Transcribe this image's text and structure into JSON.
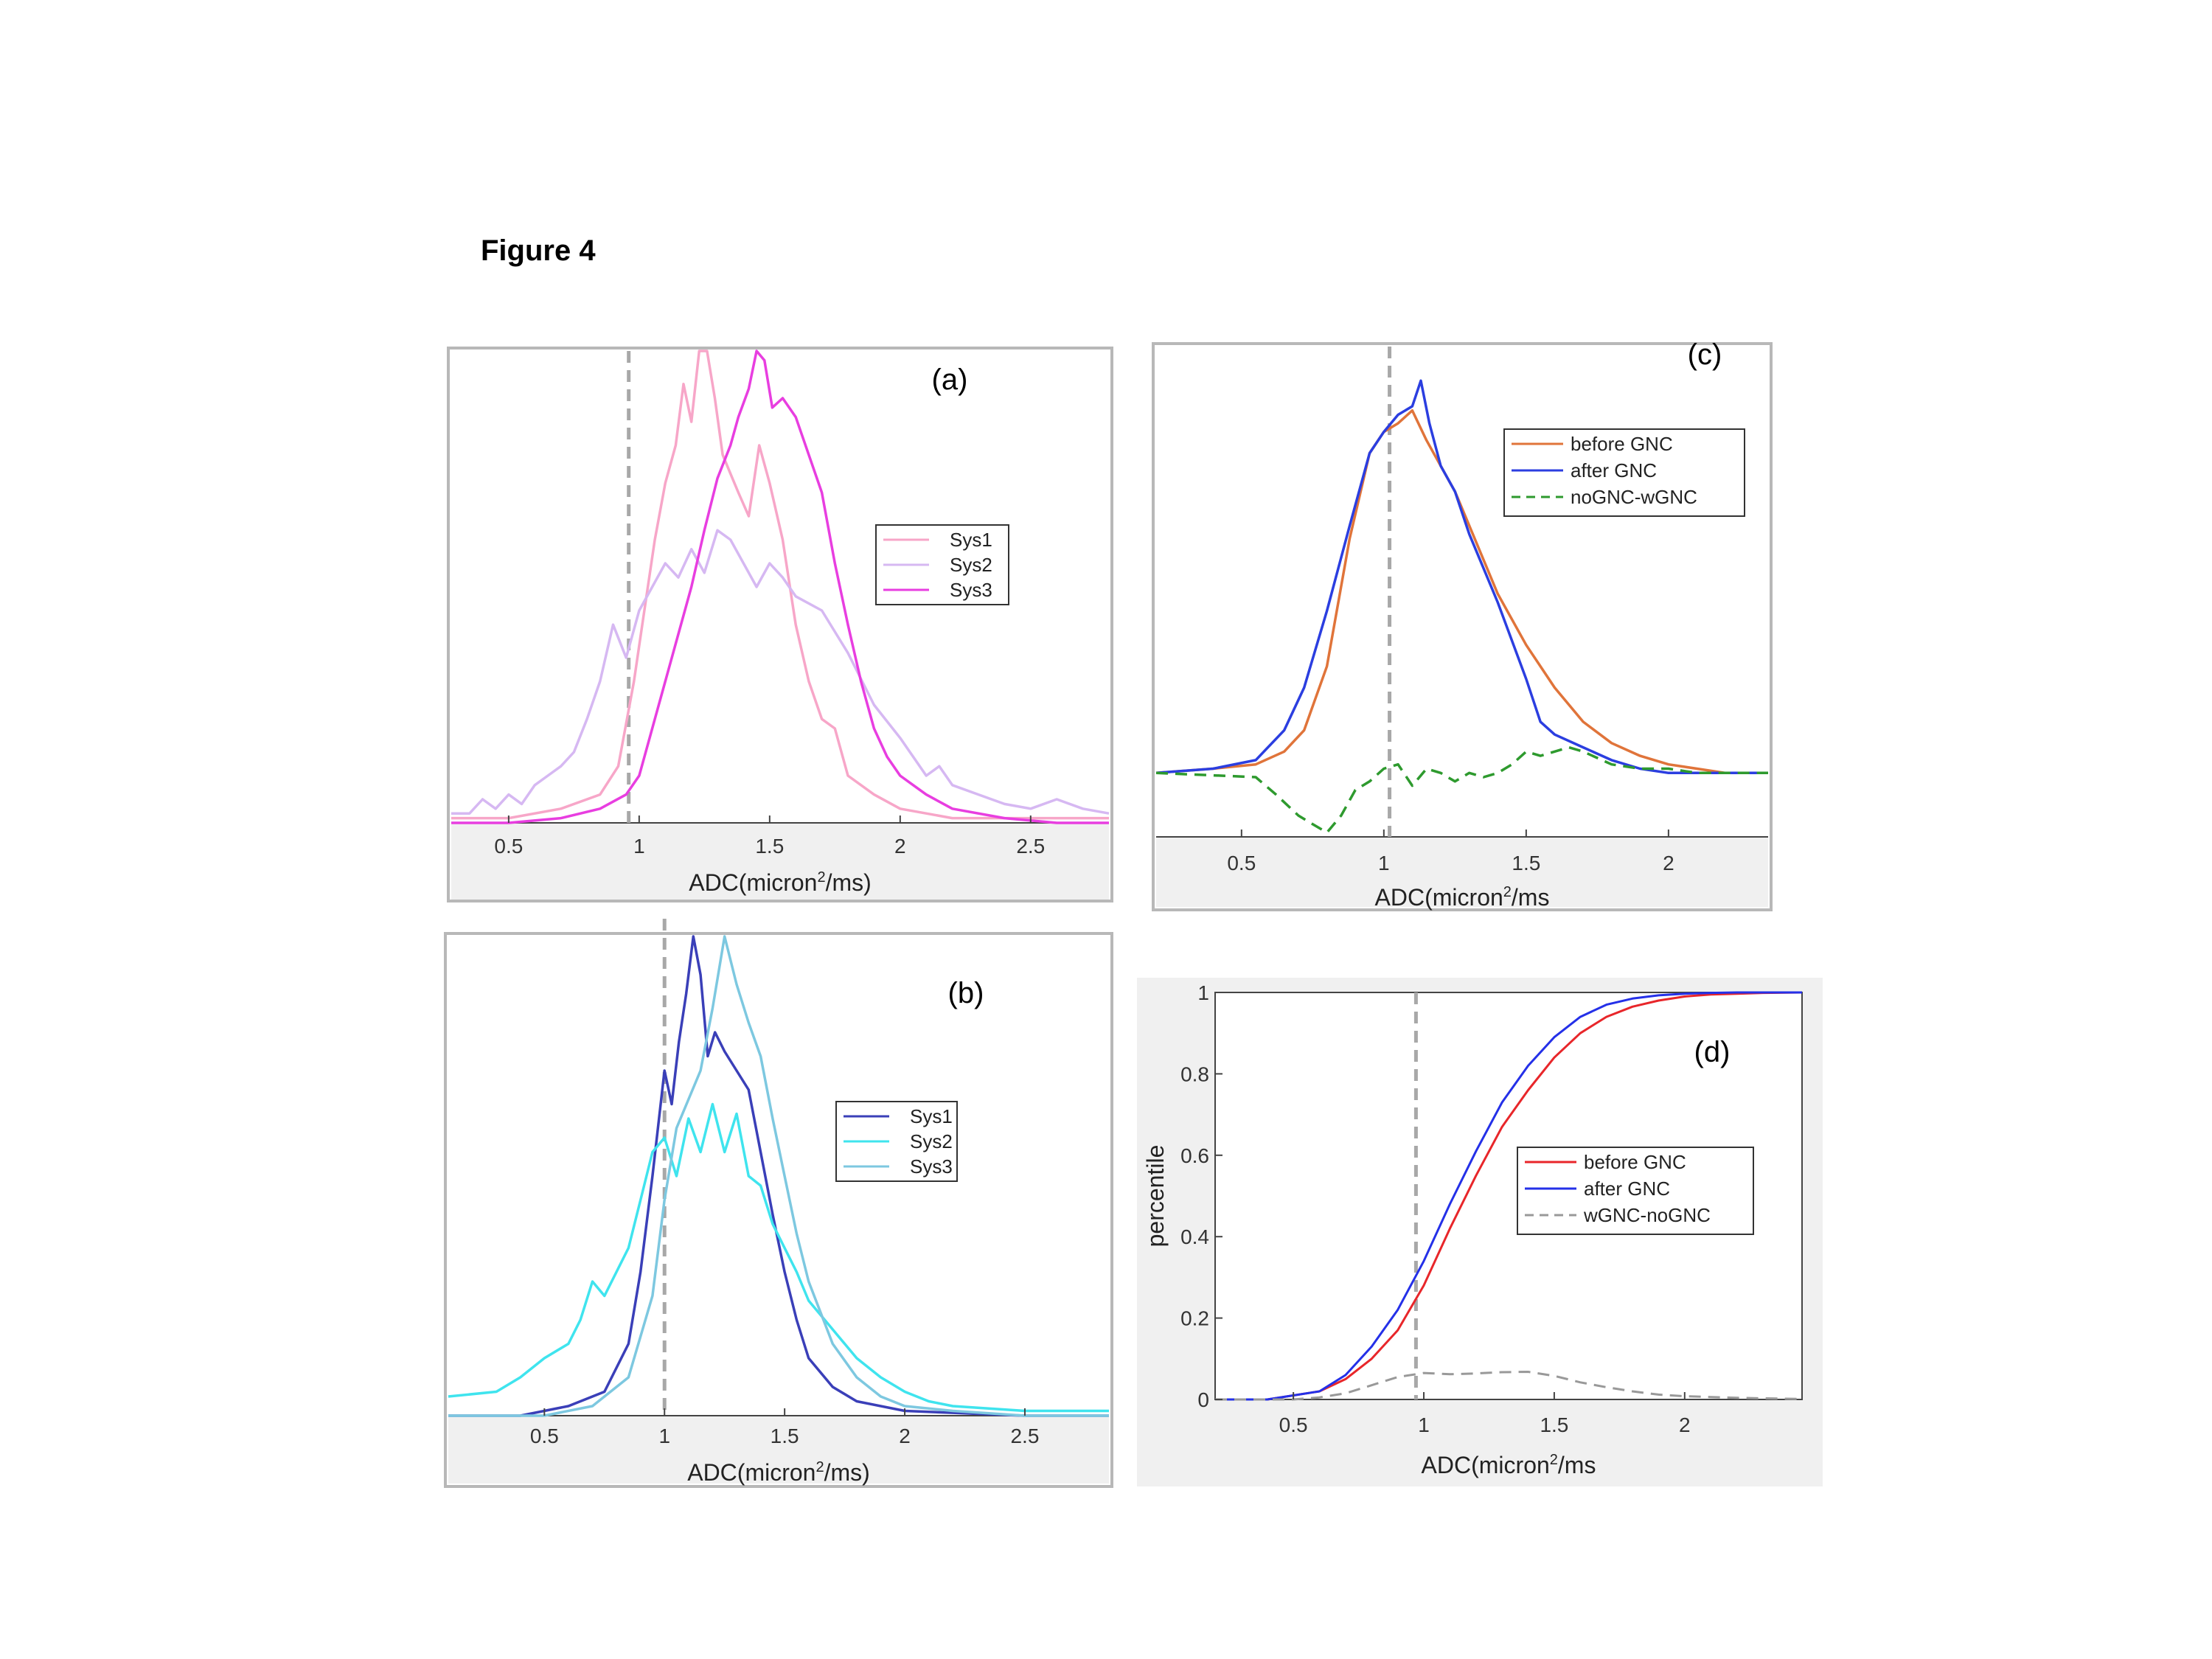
{
  "figure_title": "Figure 4",
  "chart_data": [
    {
      "id": "a",
      "type": "line",
      "panel_label": "(a)",
      "xlabel": "ADC(micron²/ms)",
      "xlabel_main": "ADC(micron",
      "xlabel_sup": "2",
      "xlabel_tail": "/ms)",
      "xlim": [
        0.28,
        2.8
      ],
      "ylim": [
        0,
        1
      ],
      "xticks": [
        0.5,
        1,
        1.5,
        2,
        2.5
      ],
      "xtick_labels": [
        "0.5",
        "1",
        "1.5",
        "2",
        "2.5"
      ],
      "show_y_axis": false,
      "vline": 0.96,
      "legend": [
        "Sys1",
        "Sys2",
        "Sys3"
      ],
      "series": [
        {
          "name": "Sys1",
          "color": "#f7a6c8",
          "x": [
            0.28,
            0.5,
            0.7,
            0.85,
            0.92,
            0.98,
            1.02,
            1.06,
            1.1,
            1.14,
            1.17,
            1.2,
            1.23,
            1.26,
            1.29,
            1.32,
            1.35,
            1.38,
            1.42,
            1.46,
            1.5,
            1.55,
            1.6,
            1.65,
            1.7,
            1.75,
            1.8,
            1.9,
            2.0,
            2.2,
            2.5,
            2.8
          ],
          "y": [
            0.01,
            0.01,
            0.03,
            0.06,
            0.12,
            0.3,
            0.45,
            0.6,
            0.72,
            0.8,
            0.93,
            0.85,
            1.0,
            1.0,
            0.9,
            0.78,
            0.74,
            0.7,
            0.65,
            0.8,
            0.72,
            0.6,
            0.42,
            0.3,
            0.22,
            0.2,
            0.1,
            0.06,
            0.03,
            0.01,
            0.01,
            0.01
          ]
        },
        {
          "name": "Sys2",
          "color": "#d6b8f2",
          "x": [
            0.28,
            0.35,
            0.4,
            0.45,
            0.5,
            0.55,
            0.6,
            0.65,
            0.7,
            0.75,
            0.8,
            0.85,
            0.9,
            0.95,
            1.0,
            1.05,
            1.1,
            1.15,
            1.2,
            1.25,
            1.3,
            1.35,
            1.4,
            1.45,
            1.5,
            1.55,
            1.6,
            1.7,
            1.8,
            1.9,
            2.0,
            2.05,
            2.1,
            2.15,
            2.2,
            2.3,
            2.4,
            2.5,
            2.6,
            2.7,
            2.8
          ],
          "y": [
            0.02,
            0.02,
            0.05,
            0.03,
            0.06,
            0.04,
            0.08,
            0.1,
            0.12,
            0.15,
            0.22,
            0.3,
            0.42,
            0.35,
            0.45,
            0.5,
            0.55,
            0.52,
            0.58,
            0.53,
            0.62,
            0.6,
            0.55,
            0.5,
            0.55,
            0.52,
            0.48,
            0.45,
            0.36,
            0.25,
            0.18,
            0.14,
            0.1,
            0.12,
            0.08,
            0.06,
            0.04,
            0.03,
            0.05,
            0.03,
            0.02
          ]
        },
        {
          "name": "Sys3",
          "color": "#e83ee0",
          "x": [
            0.28,
            0.5,
            0.7,
            0.85,
            0.95,
            1.0,
            1.05,
            1.1,
            1.15,
            1.2,
            1.25,
            1.3,
            1.35,
            1.38,
            1.42,
            1.45,
            1.48,
            1.51,
            1.55,
            1.6,
            1.65,
            1.7,
            1.75,
            1.8,
            1.85,
            1.9,
            1.95,
            2.0,
            2.05,
            2.1,
            2.2,
            2.4,
            2.6,
            2.8
          ],
          "y": [
            0.0,
            0.0,
            0.01,
            0.03,
            0.06,
            0.1,
            0.2,
            0.3,
            0.4,
            0.5,
            0.62,
            0.73,
            0.8,
            0.86,
            0.92,
            1.0,
            0.98,
            0.88,
            0.9,
            0.86,
            0.78,
            0.7,
            0.55,
            0.42,
            0.3,
            0.2,
            0.14,
            0.1,
            0.08,
            0.06,
            0.03,
            0.01,
            0.0,
            0.0
          ]
        }
      ]
    },
    {
      "id": "b",
      "type": "line",
      "panel_label": "(b)",
      "xlabel": "ADC(micron²/ms)",
      "xlabel_main": "ADC(micron",
      "xlabel_sup": "2",
      "xlabel_tail": "/ms)",
      "xlim": [
        0.1,
        2.85
      ],
      "ylim": [
        0,
        1
      ],
      "xticks": [
        0.5,
        1,
        1.5,
        2,
        2.5
      ],
      "xtick_labels": [
        "0.5",
        "1",
        "1.5",
        "2",
        "2.5"
      ],
      "show_y_axis": false,
      "vline": 1.0,
      "legend": [
        "Sys1",
        "Sys2",
        "Sys3"
      ],
      "series": [
        {
          "name": "Sys1",
          "color": "#3a3fb8",
          "x": [
            0.1,
            0.4,
            0.6,
            0.75,
            0.85,
            0.9,
            0.95,
            1.0,
            1.03,
            1.06,
            1.09,
            1.12,
            1.15,
            1.18,
            1.21,
            1.25,
            1.3,
            1.35,
            1.4,
            1.45,
            1.5,
            1.55,
            1.6,
            1.7,
            1.8,
            2.0,
            2.5,
            2.85
          ],
          "y": [
            0.0,
            0.0,
            0.02,
            0.05,
            0.15,
            0.3,
            0.5,
            0.72,
            0.65,
            0.78,
            0.88,
            1.0,
            0.92,
            0.75,
            0.8,
            0.76,
            0.72,
            0.68,
            0.55,
            0.42,
            0.3,
            0.2,
            0.12,
            0.06,
            0.03,
            0.01,
            0.0,
            0.0
          ]
        },
        {
          "name": "Sys2",
          "color": "#3fe4ee",
          "x": [
            0.1,
            0.3,
            0.4,
            0.5,
            0.6,
            0.65,
            0.7,
            0.75,
            0.8,
            0.85,
            0.9,
            0.95,
            1.0,
            1.05,
            1.1,
            1.15,
            1.2,
            1.25,
            1.3,
            1.35,
            1.4,
            1.45,
            1.5,
            1.55,
            1.6,
            1.7,
            1.8,
            1.9,
            2.0,
            2.1,
            2.2,
            2.5,
            2.85
          ],
          "y": [
            0.04,
            0.05,
            0.08,
            0.12,
            0.15,
            0.2,
            0.28,
            0.25,
            0.3,
            0.35,
            0.45,
            0.55,
            0.58,
            0.5,
            0.62,
            0.55,
            0.65,
            0.55,
            0.63,
            0.5,
            0.48,
            0.4,
            0.35,
            0.3,
            0.24,
            0.18,
            0.12,
            0.08,
            0.05,
            0.03,
            0.02,
            0.01,
            0.01
          ]
        },
        {
          "name": "Sys3",
          "color": "#7dc8e0",
          "x": [
            0.1,
            0.5,
            0.7,
            0.85,
            0.95,
            1.0,
            1.05,
            1.1,
            1.15,
            1.2,
            1.25,
            1.3,
            1.35,
            1.4,
            1.45,
            1.5,
            1.55,
            1.6,
            1.7,
            1.8,
            1.9,
            2.0,
            2.2,
            2.5,
            2.85
          ],
          "y": [
            0.0,
            0.0,
            0.02,
            0.08,
            0.25,
            0.45,
            0.6,
            0.66,
            0.72,
            0.85,
            1.0,
            0.9,
            0.82,
            0.75,
            0.62,
            0.5,
            0.38,
            0.28,
            0.15,
            0.08,
            0.04,
            0.02,
            0.01,
            0.0,
            0.0
          ]
        }
      ]
    },
    {
      "id": "c",
      "type": "line",
      "panel_label": "(c)",
      "xlabel": "ADC(micron²/ms",
      "xlabel_main": "ADC(micron",
      "xlabel_sup": "2",
      "xlabel_tail": "/ms",
      "xlim": [
        0.2,
        2.35
      ],
      "ylim": [
        -0.15,
        1.0
      ],
      "xticks": [
        0.5,
        1,
        1.5,
        2
      ],
      "xtick_labels": [
        "0.5",
        "1",
        "1.5",
        "2"
      ],
      "show_y_axis": false,
      "vline": 1.02,
      "legend": [
        "before GNC",
        "after GNC",
        "noGNC-wGNC"
      ],
      "series": [
        {
          "name": "before GNC",
          "color": "#e0743a",
          "dash": false,
          "x": [
            0.2,
            0.4,
            0.55,
            0.65,
            0.72,
            0.8,
            0.88,
            0.95,
            1.0,
            1.05,
            1.1,
            1.15,
            1.2,
            1.25,
            1.3,
            1.4,
            1.5,
            1.6,
            1.7,
            1.8,
            1.9,
            2.0,
            2.1,
            2.2,
            2.35
          ],
          "y": [
            0.0,
            0.01,
            0.02,
            0.05,
            0.1,
            0.25,
            0.55,
            0.75,
            0.8,
            0.82,
            0.85,
            0.78,
            0.72,
            0.66,
            0.58,
            0.42,
            0.3,
            0.2,
            0.12,
            0.07,
            0.04,
            0.02,
            0.01,
            0.0,
            0.0
          ]
        },
        {
          "name": "after GNC",
          "color": "#2b3ee0",
          "dash": false,
          "x": [
            0.2,
            0.4,
            0.55,
            0.65,
            0.72,
            0.8,
            0.88,
            0.95,
            1.0,
            1.05,
            1.1,
            1.13,
            1.16,
            1.2,
            1.25,
            1.3,
            1.4,
            1.5,
            1.55,
            1.6,
            1.7,
            1.8,
            1.9,
            2.0,
            2.1,
            2.2,
            2.35
          ],
          "y": [
            0.0,
            0.01,
            0.03,
            0.1,
            0.2,
            0.38,
            0.58,
            0.75,
            0.8,
            0.84,
            0.86,
            0.92,
            0.82,
            0.72,
            0.66,
            0.56,
            0.4,
            0.22,
            0.12,
            0.09,
            0.06,
            0.03,
            0.01,
            0.0,
            0.0,
            0.0,
            0.0
          ]
        },
        {
          "name": "noGNC-wGNC",
          "color": "#2e9a2e",
          "dash": true,
          "x": [
            0.2,
            0.55,
            0.62,
            0.7,
            0.75,
            0.8,
            0.85,
            0.9,
            0.95,
            1.0,
            1.05,
            1.1,
            1.15,
            1.2,
            1.25,
            1.3,
            1.35,
            1.4,
            1.45,
            1.5,
            1.55,
            1.6,
            1.65,
            1.7,
            1.8,
            1.9,
            2.0,
            2.1,
            2.2,
            2.35
          ],
          "y": [
            0.0,
            -0.01,
            -0.05,
            -0.1,
            -0.12,
            -0.14,
            -0.1,
            -0.04,
            -0.02,
            0.01,
            0.02,
            -0.03,
            0.01,
            0.0,
            -0.02,
            0.0,
            -0.01,
            0.0,
            0.02,
            0.05,
            0.04,
            0.05,
            0.06,
            0.05,
            0.02,
            0.01,
            0.01,
            0.0,
            0.0,
            0.0
          ]
        }
      ]
    },
    {
      "id": "d",
      "type": "line",
      "panel_label": "(d)",
      "xlabel": "ADC(micron²/ms",
      "xlabel_main": "ADC(micron",
      "xlabel_sup": "2",
      "xlabel_tail": "/ms",
      "ylabel": "percentile",
      "xlim": [
        0.2,
        2.45
      ],
      "ylim": [
        0,
        1
      ],
      "xticks": [
        0.5,
        1,
        1.5,
        2
      ],
      "xtick_labels": [
        "0.5",
        "1",
        "1.5",
        "2"
      ],
      "yticks": [
        0,
        0.2,
        0.4,
        0.6,
        0.8,
        1
      ],
      "ytick_labels": [
        "0",
        "0.2",
        "0.4",
        "0.6",
        "0.8",
        "1"
      ],
      "show_y_axis": true,
      "vline": 0.97,
      "legend": [
        "before GNC",
        "after GNC",
        "wGNC-noGNC"
      ],
      "series": [
        {
          "name": "before GNC",
          "color": "#e8262a",
          "dash": false,
          "x": [
            0.2,
            0.4,
            0.5,
            0.6,
            0.7,
            0.8,
            0.9,
            1.0,
            1.1,
            1.2,
            1.3,
            1.4,
            1.5,
            1.6,
            1.7,
            1.8,
            1.9,
            2.0,
            2.1,
            2.2,
            2.3,
            2.45
          ],
          "y": [
            0.0,
            0.0,
            0.01,
            0.02,
            0.05,
            0.1,
            0.17,
            0.28,
            0.42,
            0.55,
            0.67,
            0.76,
            0.84,
            0.9,
            0.94,
            0.965,
            0.98,
            0.99,
            0.995,
            0.997,
            0.999,
            1.0
          ]
        },
        {
          "name": "after GNC",
          "color": "#2430e8",
          "dash": false,
          "x": [
            0.2,
            0.4,
            0.5,
            0.6,
            0.7,
            0.8,
            0.9,
            1.0,
            1.1,
            1.2,
            1.3,
            1.4,
            1.5,
            1.6,
            1.7,
            1.8,
            1.9,
            2.0,
            2.1,
            2.2,
            2.3,
            2.45
          ],
          "y": [
            0.0,
            0.0,
            0.01,
            0.02,
            0.06,
            0.13,
            0.22,
            0.34,
            0.48,
            0.61,
            0.73,
            0.82,
            0.89,
            0.94,
            0.97,
            0.985,
            0.993,
            0.997,
            0.999,
            1.0,
            1.0,
            1.0
          ]
        },
        {
          "name": "wGNC-noGNC",
          "color": "#999999",
          "dash": true,
          "x": [
            0.2,
            0.5,
            0.6,
            0.7,
            0.8,
            0.9,
            1.0,
            1.1,
            1.2,
            1.3,
            1.4,
            1.5,
            1.6,
            1.7,
            1.8,
            1.9,
            2.0,
            2.2,
            2.45
          ],
          "y": [
            0.0,
            0.0,
            0.005,
            0.015,
            0.035,
            0.055,
            0.065,
            0.062,
            0.064,
            0.067,
            0.068,
            0.058,
            0.042,
            0.03,
            0.02,
            0.012,
            0.008,
            0.004,
            0.001
          ]
        }
      ]
    }
  ]
}
